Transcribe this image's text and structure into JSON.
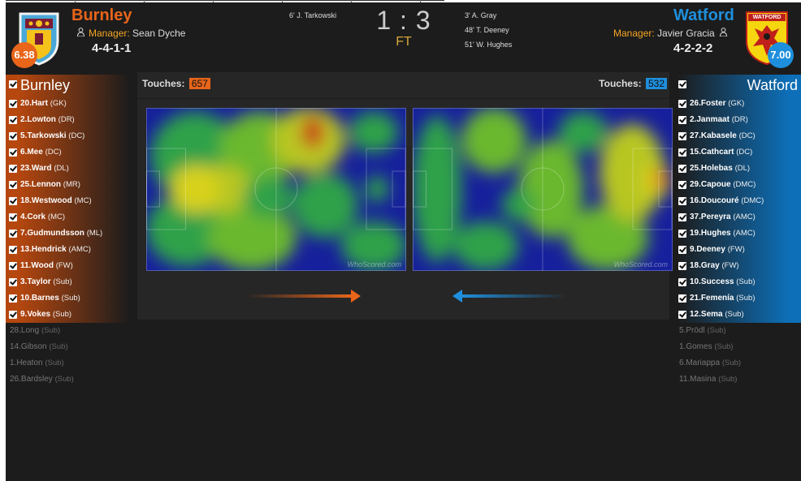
{
  "home": {
    "name": "Burnley",
    "rating": "6.38",
    "manager_label": "Manager:",
    "manager": "Sean Dyche",
    "formation": "4-4-1-1",
    "goals": [
      "6' J. Tarkowski"
    ],
    "touches_label": "Touches:",
    "touches": "657",
    "color": "#e8651a",
    "starters": [
      {
        "name": "20.Hart",
        "pos": "(GK)"
      },
      {
        "name": "2.Lowton",
        "pos": "(DR)"
      },
      {
        "name": "5.Tarkowski",
        "pos": "(DC)"
      },
      {
        "name": "6.Mee",
        "pos": "(DC)"
      },
      {
        "name": "23.Ward",
        "pos": "(DL)"
      },
      {
        "name": "25.Lennon",
        "pos": "(MR)"
      },
      {
        "name": "18.Westwood",
        "pos": "(MC)"
      },
      {
        "name": "4.Cork",
        "pos": "(MC)"
      },
      {
        "name": "7.Gudmundsson",
        "pos": "(ML)"
      },
      {
        "name": "13.Hendrick",
        "pos": "(AMC)"
      },
      {
        "name": "11.Wood",
        "pos": "(FW)"
      },
      {
        "name": "3.Taylor",
        "pos": "(Sub)"
      },
      {
        "name": "10.Barnes",
        "pos": "(Sub)"
      },
      {
        "name": "9.Vokes",
        "pos": "(Sub)"
      }
    ],
    "bench": [
      {
        "name": "28.Long",
        "pos": "(Sub)"
      },
      {
        "name": "14.Gibson",
        "pos": "(Sub)"
      },
      {
        "name": "1.Heaton",
        "pos": "(Sub)"
      },
      {
        "name": "26.Bardsley",
        "pos": "(Sub)"
      }
    ]
  },
  "away": {
    "name": "Watford",
    "rating": "7.00",
    "manager_label": "Manager:",
    "manager": "Javier Gracia",
    "formation": "4-2-2-2",
    "goals": [
      "3' A. Gray",
      "48' T. Deeney",
      "51' W. Hughes"
    ],
    "touches_label": "Touches:",
    "touches": "532",
    "color": "#1e8fdc",
    "starters": [
      {
        "name": "26.Foster",
        "pos": "(GK)"
      },
      {
        "name": "2.Janmaat",
        "pos": "(DR)"
      },
      {
        "name": "27.Kabasele",
        "pos": "(DC)"
      },
      {
        "name": "15.Cathcart",
        "pos": "(DC)"
      },
      {
        "name": "25.Holebas",
        "pos": "(DL)"
      },
      {
        "name": "29.Capoue",
        "pos": "(DMC)"
      },
      {
        "name": "16.Doucouré",
        "pos": "(DMC)"
      },
      {
        "name": "37.Pereyra",
        "pos": "(AMC)"
      },
      {
        "name": "19.Hughes",
        "pos": "(AMC)"
      },
      {
        "name": "9.Deeney",
        "pos": "(FW)"
      },
      {
        "name": "18.Gray",
        "pos": "(FW)"
      },
      {
        "name": "10.Success",
        "pos": "(Sub)"
      },
      {
        "name": "21.Femenía",
        "pos": "(Sub)"
      },
      {
        "name": "12.Sema",
        "pos": "(Sub)"
      }
    ],
    "bench": [
      {
        "name": "5.Prödl",
        "pos": "(Sub)"
      },
      {
        "name": "1.Gomes",
        "pos": "(Sub)"
      },
      {
        "name": "6.Mariappa",
        "pos": "(Sub)"
      },
      {
        "name": "11.Masina",
        "pos": "(Sub)"
      }
    ]
  },
  "score": "1 : 3",
  "status": "FT",
  "crest_text_away": "WATFORD",
  "watermark": "WhoScored.com"
}
